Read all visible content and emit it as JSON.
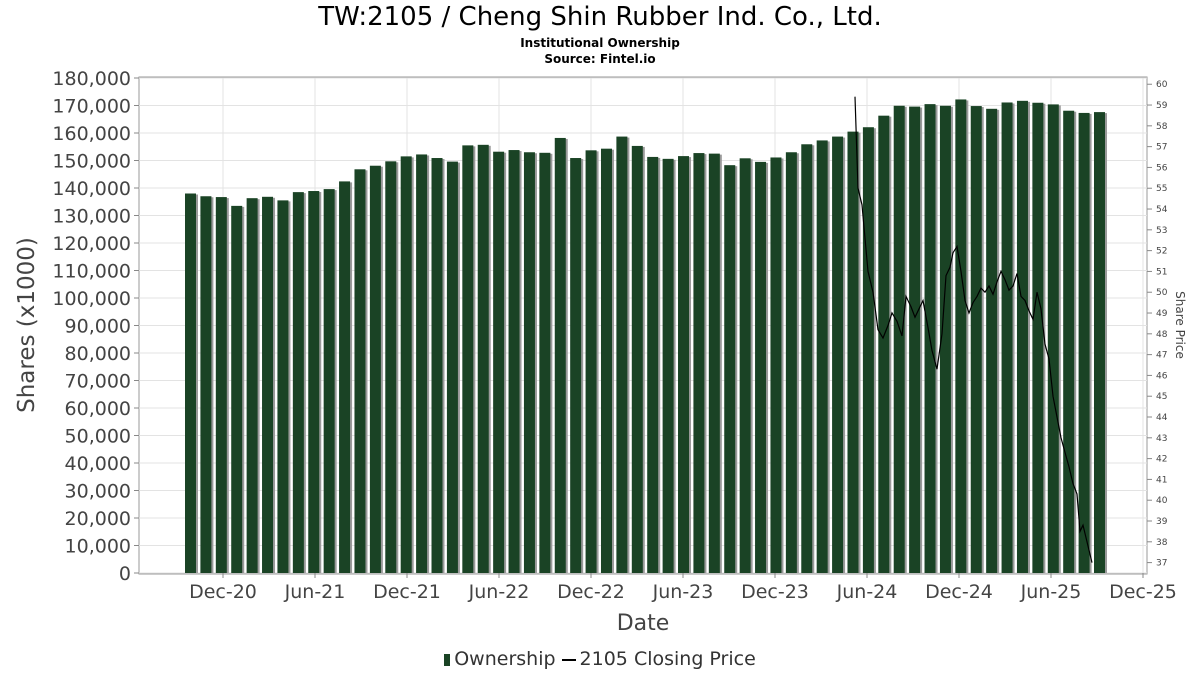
{
  "header": {
    "title": "TW:2105 / Cheng Shin Rubber Ind. Co., Ltd.",
    "subtitle1": "Institutional Ownership",
    "subtitle2": "Source: Fintel.io"
  },
  "legend": {
    "ownership_label": "Ownership",
    "price_label": "2105 Closing Price"
  },
  "colors": {
    "bar": "#1a4325",
    "bar_shadow": "#9a9a9a",
    "price_line": "#000000",
    "grid": "#e3e3e3"
  },
  "chart_data": {
    "type": "bar",
    "xlabel": "Date",
    "ylabel": "Shares (x1000)",
    "y2label": "Share Price",
    "ylim": [
      0,
      180000
    ],
    "y2lim": [
      36.5,
      60.3
    ],
    "grid": true,
    "legend_position": "bottom",
    "x_tick_labels": [
      "Dec-20",
      "Jun-21",
      "Dec-21",
      "Jun-22",
      "Dec-22",
      "Jun-23",
      "Dec-23",
      "Jun-24",
      "Dec-24",
      "Jun-25",
      "Dec-25"
    ],
    "y_tick_labels": [
      "0",
      "10,000",
      "20,000",
      "30,000",
      "40,000",
      "50,000",
      "60,000",
      "70,000",
      "80,000",
      "90,000",
      "100,000",
      "110,000",
      "120,000",
      "130,000",
      "140,000",
      "150,000",
      "160,000",
      "170,000",
      "180,000"
    ],
    "y2_tick_labels": [
      "37",
      "38",
      "39",
      "40",
      "41",
      "42",
      "43",
      "44",
      "45",
      "46",
      "47",
      "48",
      "49",
      "50",
      "51",
      "52",
      "53",
      "54",
      "55",
      "56",
      "57",
      "58",
      "59",
      "60"
    ],
    "series": [
      {
        "name": "Ownership",
        "values": [
          138000,
          137000,
          136700,
          133500,
          136300,
          136800,
          135500,
          138500,
          138900,
          139600,
          142400,
          146800,
          148100,
          149700,
          151500,
          152200,
          150900,
          149600,
          155500,
          155700,
          153200,
          153800,
          153000,
          152800,
          158200,
          150900,
          153700,
          154300,
          158700,
          155300,
          151300,
          150600,
          151600,
          152700,
          152500,
          148300,
          150800,
          149500,
          151100,
          153000,
          155900,
          157300,
          158700,
          160500,
          162100,
          166300,
          169900,
          169600,
          170500,
          169900,
          172200,
          169800,
          168800,
          171100,
          171700,
          171000,
          170400,
          168100,
          167300,
          167600
        ]
      },
      {
        "name": "2105 Closing Price",
        "points": [
          [
            855,
            59.4
          ],
          [
            858,
            55.0
          ],
          [
            862,
            54.2
          ],
          [
            868,
            51.0
          ],
          [
            873,
            50.0
          ],
          [
            878,
            48.2
          ],
          [
            883,
            47.8
          ],
          [
            888,
            48.4
          ],
          [
            892,
            49.0
          ],
          [
            897,
            48.6
          ],
          [
            902,
            47.9
          ],
          [
            906,
            49.8
          ],
          [
            911,
            49.3
          ],
          [
            915,
            48.8
          ],
          [
            919,
            49.2
          ],
          [
            923,
            49.6
          ],
          [
            928,
            48.3
          ],
          [
            932,
            47.2
          ],
          [
            937,
            46.3
          ],
          [
            942,
            48.0
          ],
          [
            946,
            50.8
          ],
          [
            950,
            51.2
          ],
          [
            953,
            51.9
          ],
          [
            957,
            52.2
          ],
          [
            961,
            51.0
          ],
          [
            965,
            49.6
          ],
          [
            969,
            49.0
          ],
          [
            973,
            49.5
          ],
          [
            977,
            49.8
          ],
          [
            981,
            50.2
          ],
          [
            985,
            50.0
          ],
          [
            989,
            50.3
          ],
          [
            993,
            49.9
          ],
          [
            997,
            50.5
          ],
          [
            1001,
            51.0
          ],
          [
            1005,
            50.6
          ],
          [
            1009,
            50.1
          ],
          [
            1013,
            50.3
          ],
          [
            1017,
            50.9
          ],
          [
            1021,
            49.8
          ],
          [
            1025,
            49.6
          ],
          [
            1029,
            49.1
          ],
          [
            1033,
            48.7
          ],
          [
            1037,
            50.0
          ],
          [
            1041,
            49.2
          ],
          [
            1045,
            47.5
          ],
          [
            1049,
            46.8
          ],
          [
            1053,
            45.0
          ],
          [
            1057,
            44.0
          ],
          [
            1061,
            43.0
          ],
          [
            1065,
            42.3
          ],
          [
            1069,
            41.6
          ],
          [
            1073,
            40.8
          ],
          [
            1077,
            40.3
          ],
          [
            1080,
            38.5
          ],
          [
            1083,
            38.8
          ],
          [
            1086,
            38.2
          ],
          [
            1089,
            37.6
          ],
          [
            1092,
            37.0
          ]
        ]
      }
    ]
  }
}
